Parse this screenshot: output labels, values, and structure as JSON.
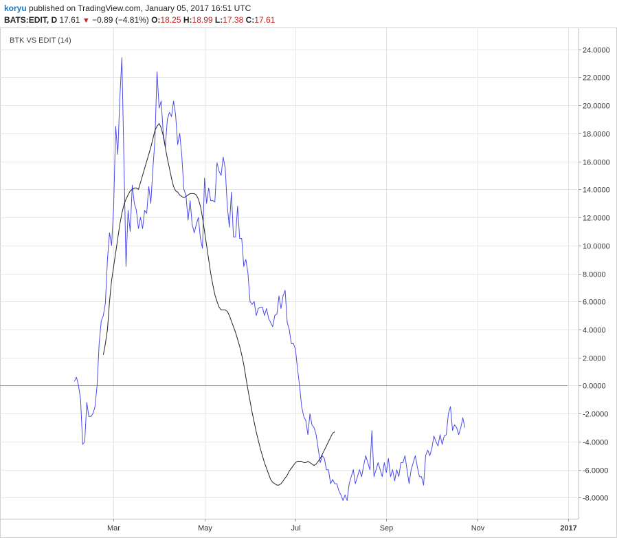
{
  "header": {
    "author": "koryu",
    "published_text": "published on TradingView.com, January 05, 2017 16:51 UTC",
    "symbol": "BATS:EDIT, D",
    "last": "17.61",
    "change": "−0.89 (−4.81%)",
    "open_label": "O:",
    "open": "18.25",
    "high_label": "H:",
    "high": "18.99",
    "low_label": "L:",
    "low": "17.38",
    "close_label": "C:",
    "close": "17.61"
  },
  "indicator_label": "BTK VS EDIT (14)",
  "colors": {
    "series_line": "#4a4ae8",
    "ma_line": "#222222",
    "grid": "#e6e6e6",
    "zero_line": "#999999",
    "down": "#cc2020",
    "author": "#1a78c2"
  },
  "chart_data": {
    "type": "line",
    "title": "BTK VS EDIT (14)",
    "xlabel": "",
    "ylabel": "",
    "ylim": [
      -9.5,
      25.5
    ],
    "grid": true,
    "x_ticks": [
      {
        "label": "Mar",
        "t": 55
      },
      {
        "label": "May",
        "t": 99
      },
      {
        "label": "Jul",
        "t": 143
      },
      {
        "label": "Sep",
        "t": 187
      },
      {
        "label": "Nov",
        "t": 231
      },
      {
        "label": "2017",
        "t": 275
      }
    ],
    "x_range": [
      0,
      280
    ],
    "y_ticks": [
      24,
      22,
      20,
      18,
      16,
      14,
      12,
      10,
      8,
      6,
      4,
      2,
      0,
      -2,
      -4,
      -6,
      -8
    ],
    "y_tick_labels": [
      "24.0000",
      "22.0000",
      "20.0000",
      "18.0000",
      "16.0000",
      "14.0000",
      "12.0000",
      "10.0000",
      "8.0000",
      "6.0000",
      "4.0000",
      "2.0000",
      "0.0000",
      "-2.0000",
      "-4.0000",
      "-6.0000",
      "-8.0000"
    ],
    "zero_line": 0,
    "series": [
      {
        "role": "ratio",
        "points": [
          [
            36,
            0.3
          ],
          [
            37,
            0.6
          ],
          [
            38,
            0
          ],
          [
            39,
            -1
          ],
          [
            40,
            -4.2
          ],
          [
            41,
            -4
          ],
          [
            42,
            -1.2
          ],
          [
            43,
            -2.2
          ],
          [
            44,
            -2.2
          ],
          [
            45,
            -2
          ],
          [
            46,
            -1.5
          ],
          [
            47,
            0
          ],
          [
            48,
            3
          ],
          [
            49,
            4.6
          ],
          [
            50,
            5
          ],
          [
            51,
            5.9
          ],
          [
            52,
            9
          ],
          [
            53,
            10.9
          ],
          [
            54,
            10
          ],
          [
            55,
            12.8
          ],
          [
            56,
            18.5
          ],
          [
            57,
            16.5
          ],
          [
            58,
            20.5
          ],
          [
            59,
            23.4
          ],
          [
            60,
            16
          ],
          [
            61,
            8.5
          ],
          [
            62,
            12.5
          ],
          [
            63,
            11
          ],
          [
            64,
            14.3
          ],
          [
            65,
            13
          ],
          [
            66,
            12.5
          ],
          [
            67,
            11.2
          ],
          [
            68,
            12
          ],
          [
            69,
            11.2
          ],
          [
            70,
            12.5
          ],
          [
            71,
            12.3
          ],
          [
            72,
            14.2
          ],
          [
            73,
            13
          ],
          [
            74,
            15.5
          ],
          [
            75,
            17.5
          ],
          [
            76,
            22.4
          ],
          [
            77,
            19.8
          ],
          [
            78,
            20.3
          ],
          [
            79,
            18
          ],
          [
            80,
            17
          ],
          [
            81,
            19
          ],
          [
            82,
            19.5
          ],
          [
            83,
            19.2
          ],
          [
            84,
            20.3
          ],
          [
            85,
            19.3
          ],
          [
            86,
            17.2
          ],
          [
            87,
            18
          ],
          [
            88,
            16.4
          ],
          [
            89,
            14
          ],
          [
            90,
            13.6
          ],
          [
            91,
            11.8
          ],
          [
            92,
            13.2
          ],
          [
            93,
            11.5
          ],
          [
            94,
            10.9
          ],
          [
            95,
            11.5
          ],
          [
            96,
            12
          ],
          [
            97,
            10.5
          ],
          [
            98,
            9.8
          ],
          [
            99,
            14.8
          ],
          [
            100,
            13
          ],
          [
            101,
            14.1
          ],
          [
            102,
            13.2
          ],
          [
            103,
            13.2
          ],
          [
            104,
            13.1
          ],
          [
            105,
            15.9
          ],
          [
            106,
            15.3
          ],
          [
            107,
            15
          ],
          [
            108,
            16.3
          ],
          [
            109,
            15.5
          ],
          [
            110,
            12.8
          ],
          [
            111,
            11.3
          ],
          [
            112,
            13.8
          ],
          [
            113,
            10.6
          ],
          [
            114,
            10.6
          ],
          [
            115,
            12.8
          ],
          [
            116,
            10.5
          ],
          [
            117,
            10.5
          ],
          [
            118,
            8.5
          ],
          [
            119,
            9
          ],
          [
            120,
            8
          ],
          [
            121,
            6
          ],
          [
            122,
            5.8
          ],
          [
            123,
            6
          ],
          [
            124,
            5
          ],
          [
            125,
            5.5
          ],
          [
            126,
            5.6
          ],
          [
            127,
            5.6
          ],
          [
            128,
            5
          ],
          [
            129,
            5.5
          ],
          [
            130,
            4.8
          ],
          [
            131,
            4.5
          ],
          [
            132,
            4.2
          ],
          [
            133,
            5
          ],
          [
            134,
            5.1
          ],
          [
            135,
            6.4
          ],
          [
            136,
            5.5
          ],
          [
            137,
            6.4
          ],
          [
            138,
            6.8
          ],
          [
            139,
            4.5
          ],
          [
            140,
            4
          ],
          [
            141,
            3
          ],
          [
            142,
            3
          ],
          [
            143,
            2.6
          ],
          [
            144,
            1.2
          ],
          [
            145,
            0
          ],
          [
            146,
            -1.5
          ],
          [
            147,
            -2.2
          ],
          [
            148,
            -2.5
          ],
          [
            149,
            -3.5
          ],
          [
            150,
            -2
          ],
          [
            151,
            -2.8
          ],
          [
            152,
            -3
          ],
          [
            153,
            -3.5
          ],
          [
            154,
            -4.5
          ],
          [
            155,
            -5.5
          ],
          [
            156,
            -5
          ],
          [
            157,
            -5.2
          ],
          [
            158,
            -6
          ],
          [
            159,
            -6
          ],
          [
            160,
            -7
          ],
          [
            161,
            -6.7
          ],
          [
            162,
            -7
          ],
          [
            163,
            -7
          ],
          [
            164,
            -7.5
          ],
          [
            165,
            -7.8
          ],
          [
            166,
            -8.2
          ],
          [
            167,
            -7.8
          ],
          [
            168,
            -8.2
          ],
          [
            169,
            -7
          ],
          [
            170,
            -6.5
          ],
          [
            171,
            -6
          ],
          [
            172,
            -7
          ],
          [
            173,
            -6.5
          ],
          [
            174,
            -6
          ],
          [
            175,
            -6.5
          ],
          [
            176,
            -5.7
          ],
          [
            177,
            -5
          ],
          [
            178,
            -5.5
          ],
          [
            179,
            -6
          ],
          [
            180,
            -3.2
          ],
          [
            181,
            -6.5
          ],
          [
            182,
            -6
          ],
          [
            183,
            -5.5
          ],
          [
            184,
            -6
          ],
          [
            185,
            -6.5
          ],
          [
            186,
            -5.5
          ],
          [
            187,
            -6.2
          ],
          [
            188,
            -5.2
          ],
          [
            189,
            -6.5
          ],
          [
            190,
            -6
          ],
          [
            191,
            -6.8
          ],
          [
            192,
            -6
          ],
          [
            193,
            -6.5
          ],
          [
            194,
            -5.5
          ],
          [
            195,
            -5.5
          ],
          [
            196,
            -5
          ],
          [
            197,
            -6
          ],
          [
            198,
            -7
          ],
          [
            199,
            -6
          ],
          [
            200,
            -5.5
          ],
          [
            201,
            -5
          ],
          [
            202,
            -5.8
          ],
          [
            203,
            -6.5
          ],
          [
            204,
            -6.5
          ],
          [
            205,
            -7.1
          ],
          [
            206,
            -5
          ],
          [
            207,
            -4.6
          ],
          [
            208,
            -5
          ],
          [
            209,
            -4.5
          ],
          [
            210,
            -3.6
          ],
          [
            211,
            -4
          ],
          [
            212,
            -4.3
          ],
          [
            213,
            -3.5
          ],
          [
            214,
            -4.2
          ],
          [
            215,
            -3.6
          ],
          [
            216,
            -3.5
          ],
          [
            217,
            -2
          ],
          [
            218,
            -1.5
          ],
          [
            219,
            -3.2
          ],
          [
            220,
            -2.8
          ],
          [
            221,
            -3
          ],
          [
            222,
            -3.5
          ],
          [
            223,
            -3
          ],
          [
            224,
            -2.3
          ],
          [
            225,
            -3
          ]
        ]
      },
      {
        "role": "moving_average",
        "points": [
          [
            50,
            2.2
          ],
          [
            51,
            3
          ],
          [
            52,
            4
          ],
          [
            53,
            6
          ],
          [
            54,
            7.5
          ],
          [
            55,
            8.5
          ],
          [
            56,
            9.5
          ],
          [
            57,
            10.5
          ],
          [
            58,
            11.5
          ],
          [
            59,
            12.3
          ],
          [
            60,
            12.9
          ],
          [
            61,
            13.3
          ],
          [
            62,
            13.6
          ],
          [
            63,
            13.9
          ],
          [
            64,
            14
          ],
          [
            65,
            14.1
          ],
          [
            66,
            14.1
          ],
          [
            67,
            14
          ],
          [
            68,
            14.5
          ],
          [
            69,
            15
          ],
          [
            70,
            15.5
          ],
          [
            71,
            16
          ],
          [
            72,
            16.5
          ],
          [
            73,
            17
          ],
          [
            74,
            17.6
          ],
          [
            75,
            18.2
          ],
          [
            76,
            18.5
          ],
          [
            77,
            18.7
          ],
          [
            78,
            18.4
          ],
          [
            79,
            17.8
          ],
          [
            80,
            17
          ],
          [
            81,
            16.2
          ],
          [
            82,
            15.5
          ],
          [
            83,
            14.8
          ],
          [
            84,
            14.2
          ],
          [
            85,
            13.9
          ],
          [
            86,
            13.8
          ],
          [
            87,
            13.6
          ],
          [
            88,
            13.5
          ],
          [
            89,
            13.4
          ],
          [
            90,
            13.5
          ],
          [
            91,
            13.6
          ],
          [
            92,
            13.7
          ],
          [
            93,
            13.7
          ],
          [
            94,
            13.7
          ],
          [
            95,
            13.6
          ],
          [
            96,
            13.3
          ],
          [
            97,
            12.8
          ],
          [
            98,
            12
          ],
          [
            99,
            11
          ],
          [
            100,
            10
          ],
          [
            101,
            9
          ],
          [
            102,
            8
          ],
          [
            103,
            7.2
          ],
          [
            104,
            6.5
          ],
          [
            105,
            6
          ],
          [
            106,
            5.6
          ],
          [
            107,
            5.4
          ],
          [
            108,
            5.4
          ],
          [
            109,
            5.4
          ],
          [
            110,
            5.3
          ],
          [
            111,
            5
          ],
          [
            112,
            4.6
          ],
          [
            113,
            4.2
          ],
          [
            114,
            3.8
          ],
          [
            115,
            3.3
          ],
          [
            116,
            2.8
          ],
          [
            117,
            2.2
          ],
          [
            118,
            1.5
          ],
          [
            119,
            0.6
          ],
          [
            120,
            -0.3
          ],
          [
            121,
            -1.1
          ],
          [
            122,
            -1.9
          ],
          [
            123,
            -2.6
          ],
          [
            124,
            -3.3
          ],
          [
            125,
            -3.9
          ],
          [
            126,
            -4.5
          ],
          [
            127,
            -5
          ],
          [
            128,
            -5.5
          ],
          [
            129,
            -5.9
          ],
          [
            130,
            -6.3
          ],
          [
            131,
            -6.7
          ],
          [
            132,
            -6.9
          ],
          [
            133,
            -7
          ],
          [
            134,
            -7.1
          ],
          [
            135,
            -7.1
          ],
          [
            136,
            -7
          ],
          [
            137,
            -6.8
          ],
          [
            138,
            -6.6
          ],
          [
            139,
            -6.4
          ],
          [
            140,
            -6.1
          ],
          [
            141,
            -5.9
          ],
          [
            142,
            -5.7
          ],
          [
            143,
            -5.5
          ],
          [
            144,
            -5.4
          ],
          [
            145,
            -5.4
          ],
          [
            146,
            -5.4
          ],
          [
            147,
            -5.5
          ],
          [
            148,
            -5.5
          ],
          [
            149,
            -5.4
          ],
          [
            150,
            -5.5
          ],
          [
            151,
            -5.6
          ],
          [
            152,
            -5.7
          ],
          [
            153,
            -5.6
          ],
          [
            154,
            -5.4
          ],
          [
            155,
            -5.2
          ],
          [
            156,
            -4.9
          ],
          [
            157,
            -4.6
          ],
          [
            158,
            -4.3
          ],
          [
            159,
            -4
          ],
          [
            160,
            -3.7
          ],
          [
            161,
            -3.4
          ],
          [
            162,
            -3.3
          ]
        ]
      }
    ]
  }
}
